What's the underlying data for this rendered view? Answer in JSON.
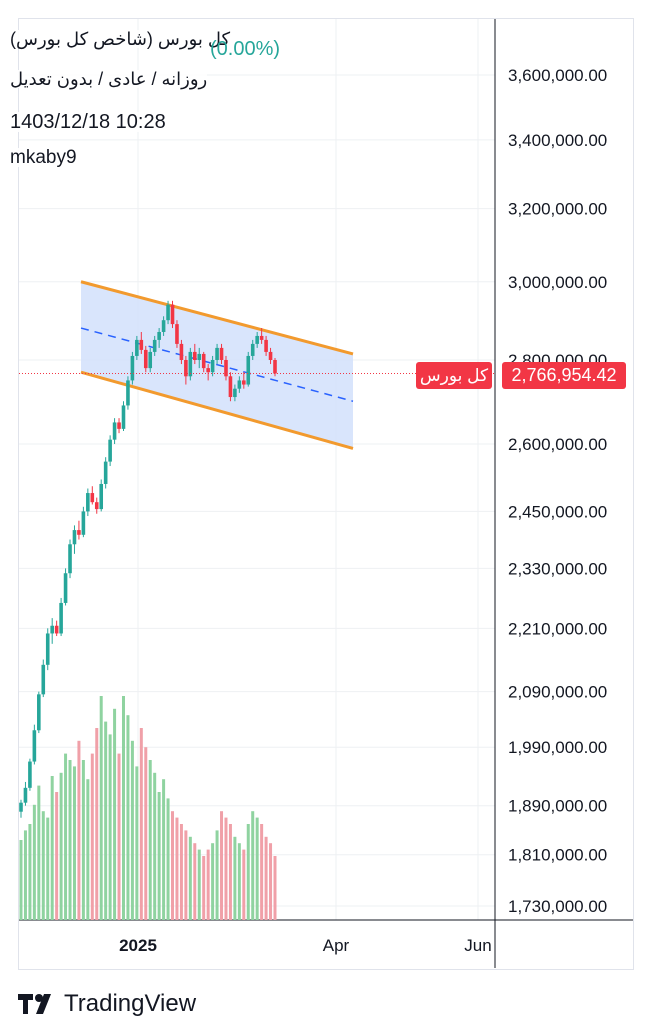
{
  "header": {
    "symbol_title": "کل بورس (شاخص کل بورس)",
    "change": "(0.00%)",
    "subtitle": "روزانه / عادی / بدون تعدیل",
    "datetime": "1403/12/18 10:28",
    "username": "mkaby9"
  },
  "price_tag": {
    "name": "کل بورس",
    "value": "2,766,954.42"
  },
  "footer": {
    "brand": "TradingView",
    "logo_icon": "tradingview-logo-icon"
  },
  "colors": {
    "up": "#26a69a",
    "down": "#f23645",
    "up_volume": "#8fd3a0",
    "down_volume": "#f0a0a8",
    "channel_line": "#f29a2e",
    "channel_fill": "#d0defb",
    "midline": "#2962ff",
    "grid": "#eef0f3",
    "text": "#131722"
  },
  "chart_data": {
    "type": "candlestick",
    "y_axis": {
      "tick_labels": [
        "3,600,000.00",
        "3,400,000.00",
        "3,200,000.00",
        "3,000,000.00",
        "2,800,000.00",
        "2,600,000.00",
        "2,450,000.00",
        "2,330,000.00",
        "2,210,000.00",
        "2,090,000.00",
        "1,990,000.00",
        "1,890,000.00",
        "1,810,000.00",
        "1,730,000.00"
      ],
      "tick_values": [
        3600000,
        3400000,
        3200000,
        3000000,
        2800000,
        2600000,
        2450000,
        2330000,
        2210000,
        2090000,
        1990000,
        1890000,
        1810000,
        1730000
      ],
      "scale": "log"
    },
    "x_axis": {
      "tick_labels": [
        "2025",
        "Apr",
        "Jun"
      ]
    },
    "last_price": 2766954.42,
    "candles": [
      [
        1880000,
        1900000,
        1870000,
        1895000
      ],
      [
        1895000,
        1930000,
        1890000,
        1920000
      ],
      [
        1920000,
        1970000,
        1915000,
        1965000
      ],
      [
        1965000,
        2030000,
        1960000,
        2020000
      ],
      [
        2020000,
        2090000,
        2015000,
        2085000
      ],
      [
        2085000,
        2150000,
        2080000,
        2140000
      ],
      [
        2140000,
        2210000,
        2130000,
        2200000
      ],
      [
        2200000,
        2230000,
        2180000,
        2215000
      ],
      [
        2215000,
        2225000,
        2195000,
        2200000
      ],
      [
        2200000,
        2270000,
        2195000,
        2260000
      ],
      [
        2260000,
        2330000,
        2255000,
        2320000
      ],
      [
        2320000,
        2390000,
        2310000,
        2380000
      ],
      [
        2380000,
        2420000,
        2360000,
        2410000
      ],
      [
        2410000,
        2430000,
        2390000,
        2400000
      ],
      [
        2400000,
        2460000,
        2395000,
        2450000
      ],
      [
        2450000,
        2500000,
        2440000,
        2490000
      ],
      [
        2490000,
        2505000,
        2465000,
        2470000
      ],
      [
        2470000,
        2480000,
        2445000,
        2455000
      ],
      [
        2455000,
        2520000,
        2450000,
        2510000
      ],
      [
        2510000,
        2570000,
        2500000,
        2560000
      ],
      [
        2560000,
        2620000,
        2550000,
        2610000
      ],
      [
        2610000,
        2660000,
        2600000,
        2650000
      ],
      [
        2650000,
        2660000,
        2625000,
        2635000
      ],
      [
        2635000,
        2700000,
        2630000,
        2690000
      ],
      [
        2690000,
        2760000,
        2680000,
        2750000
      ],
      [
        2750000,
        2820000,
        2740000,
        2810000
      ],
      [
        2810000,
        2860000,
        2800000,
        2850000
      ],
      [
        2850000,
        2870000,
        2815000,
        2825000
      ],
      [
        2825000,
        2835000,
        2770000,
        2780000
      ],
      [
        2780000,
        2830000,
        2770000,
        2820000
      ],
      [
        2820000,
        2860000,
        2810000,
        2850000
      ],
      [
        2850000,
        2880000,
        2830000,
        2870000
      ],
      [
        2870000,
        2910000,
        2860000,
        2900000
      ],
      [
        2900000,
        2950000,
        2890000,
        2940000
      ],
      [
        2940000,
        2950000,
        2880000,
        2890000
      ],
      [
        2890000,
        2900000,
        2830000,
        2840000
      ],
      [
        2840000,
        2850000,
        2790000,
        2800000
      ],
      [
        2800000,
        2810000,
        2740000,
        2760000
      ],
      [
        2760000,
        2830000,
        2750000,
        2820000
      ],
      [
        2820000,
        2840000,
        2790000,
        2800000
      ],
      [
        2800000,
        2830000,
        2780000,
        2815000
      ],
      [
        2815000,
        2820000,
        2770000,
        2780000
      ],
      [
        2780000,
        2790000,
        2750000,
        2770000
      ],
      [
        2770000,
        2810000,
        2760000,
        2800000
      ],
      [
        2800000,
        2840000,
        2790000,
        2830000
      ],
      [
        2830000,
        2840000,
        2790000,
        2800000
      ],
      [
        2800000,
        2810000,
        2750000,
        2760000
      ],
      [
        2760000,
        2770000,
        2700000,
        2710000
      ],
      [
        2710000,
        2740000,
        2700000,
        2730000
      ],
      [
        2730000,
        2760000,
        2720000,
        2750000
      ],
      [
        2750000,
        2770000,
        2730000,
        2740000
      ],
      [
        2740000,
        2820000,
        2735000,
        2810000
      ],
      [
        2810000,
        2850000,
        2800000,
        2840000
      ],
      [
        2840000,
        2870000,
        2830000,
        2860000
      ],
      [
        2860000,
        2880000,
        2840000,
        2850000
      ],
      [
        2850000,
        2860000,
        2810000,
        2820000
      ],
      [
        2820000,
        2830000,
        2790000,
        2800000
      ],
      [
        2800000,
        2805000,
        2760000,
        2766954.42
      ]
    ],
    "volumes": [
      0.25,
      0.28,
      0.3,
      0.36,
      0.42,
      0.34,
      0.32,
      0.45,
      0.4,
      0.46,
      0.52,
      0.5,
      0.48,
      0.56,
      0.5,
      0.44,
      0.52,
      0.6,
      0.7,
      0.62,
      0.58,
      0.66,
      0.52,
      0.7,
      0.64,
      0.56,
      0.48,
      0.6,
      0.54,
      0.5,
      0.46,
      0.4,
      0.44,
      0.38,
      0.34,
      0.32,
      0.3,
      0.28,
      0.26,
      0.24,
      0.22,
      0.2,
      0.22,
      0.24,
      0.28,
      0.34,
      0.32,
      0.3,
      0.26,
      0.24,
      0.22,
      0.3,
      0.34,
      0.32,
      0.3,
      0.26,
      0.24,
      0.2
    ],
    "channel": {
      "upper": [
        3000000,
        2815000
      ],
      "lower": [
        2770000,
        2590000
      ],
      "mid": [
        2880000,
        2700000
      ]
    }
  }
}
